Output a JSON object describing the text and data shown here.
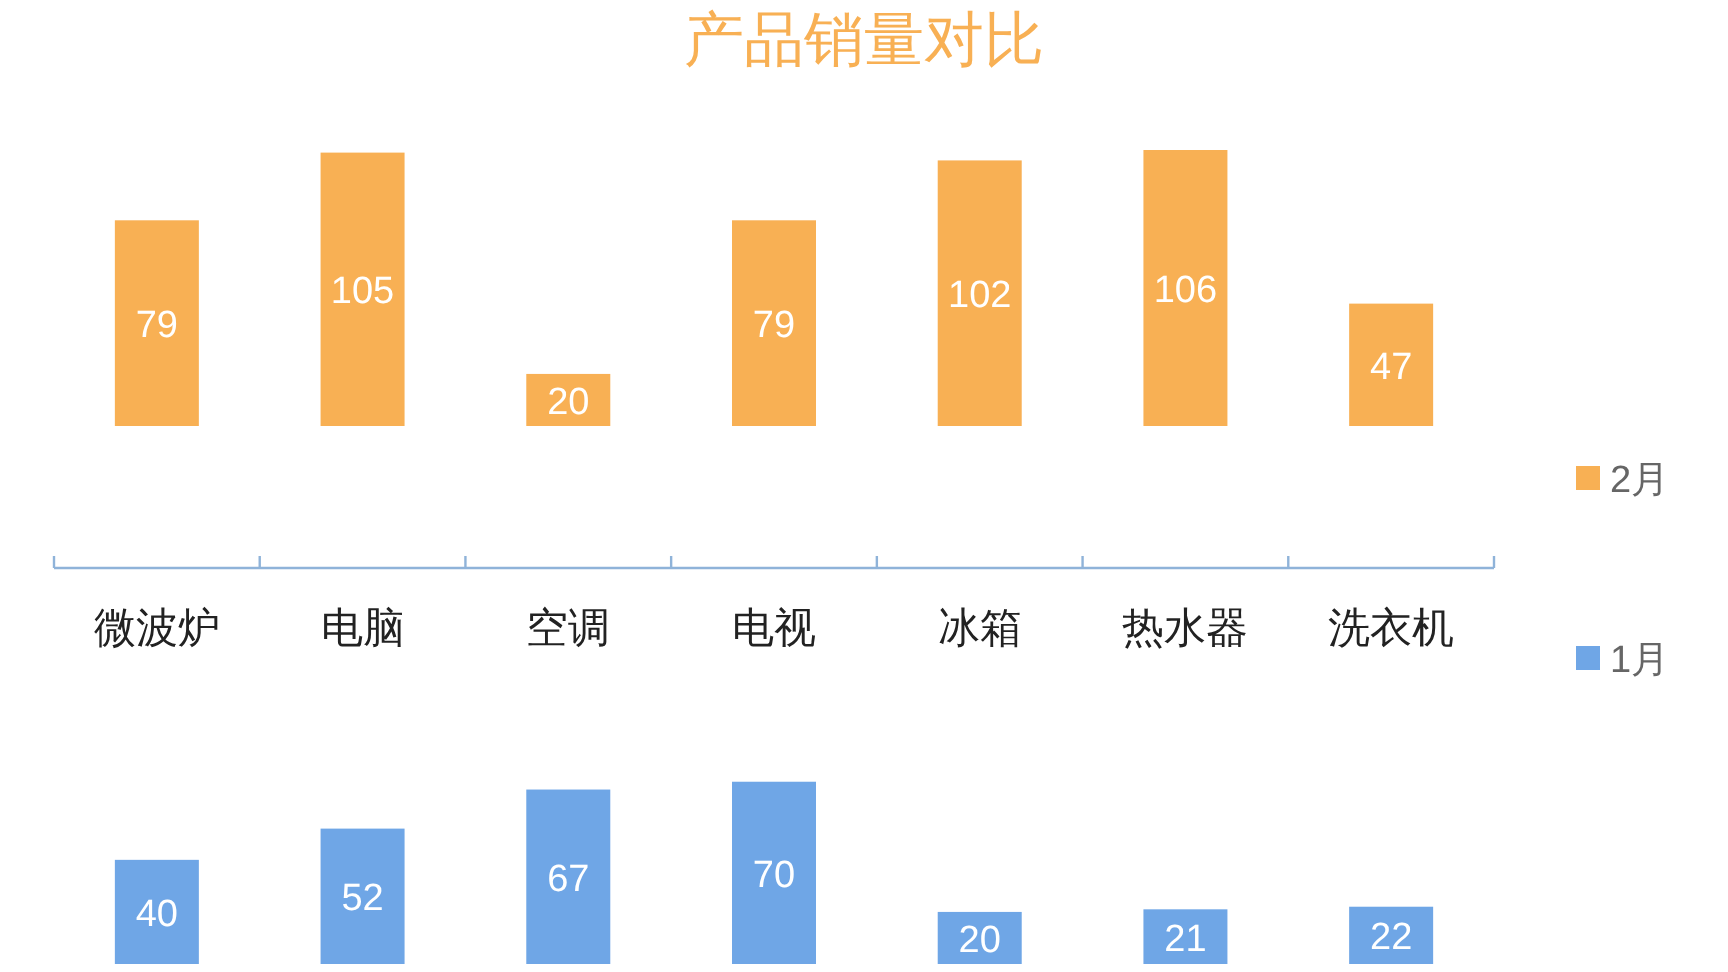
{
  "chart_data": [
    {
      "type": "bar",
      "title": "产品销量对比",
      "categories": [
        "微波炉",
        "电脑",
        "空调",
        "电视",
        "冰箱",
        "热水器",
        "洗衣机"
      ],
      "series": [
        {
          "name": "2月",
          "color": "#f8b054",
          "values": [
            79,
            105,
            20,
            79,
            102,
            106,
            47
          ]
        }
      ],
      "data_labels": true,
      "legend": "right"
    },
    {
      "type": "bar",
      "series": [
        {
          "name": "1月",
          "color": "#6fa6e6",
          "values": [
            40,
            52,
            67,
            70,
            20,
            21,
            22
          ]
        }
      ],
      "data_labels": true,
      "legend": "right",
      "tick_labels": false
    }
  ]
}
